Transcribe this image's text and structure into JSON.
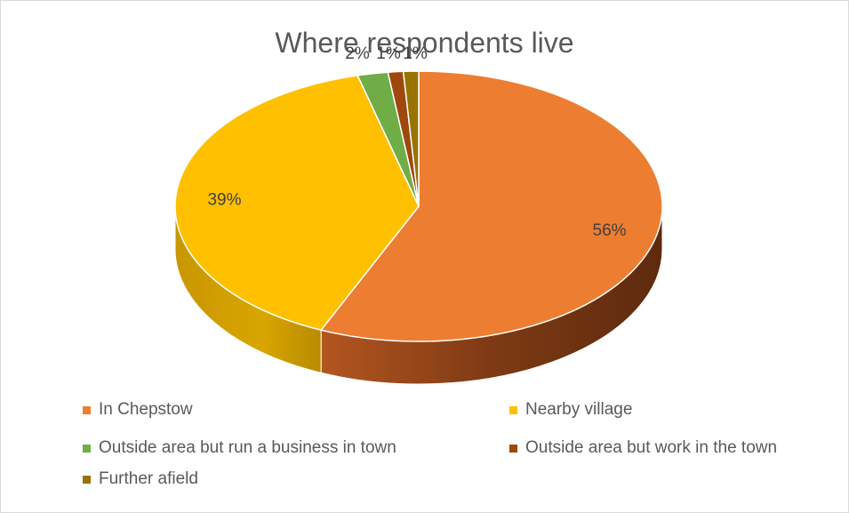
{
  "chart_data": {
    "type": "pie",
    "title": "Where respondents live",
    "categories": [
      "In Chepstow",
      "Nearby village",
      "Outside area but run a business in town",
      "Outside area but work in the town",
      "Further afield"
    ],
    "values": [
      56,
      39,
      2,
      1,
      1
    ],
    "labels": [
      "56%",
      "39%",
      "2%",
      "1%",
      "1%"
    ],
    "colors": [
      "#ED7D31",
      "#FFC000",
      "#70AD47",
      "#9E480E",
      "#997300"
    ],
    "style": "3d",
    "legend_position": "bottom"
  }
}
